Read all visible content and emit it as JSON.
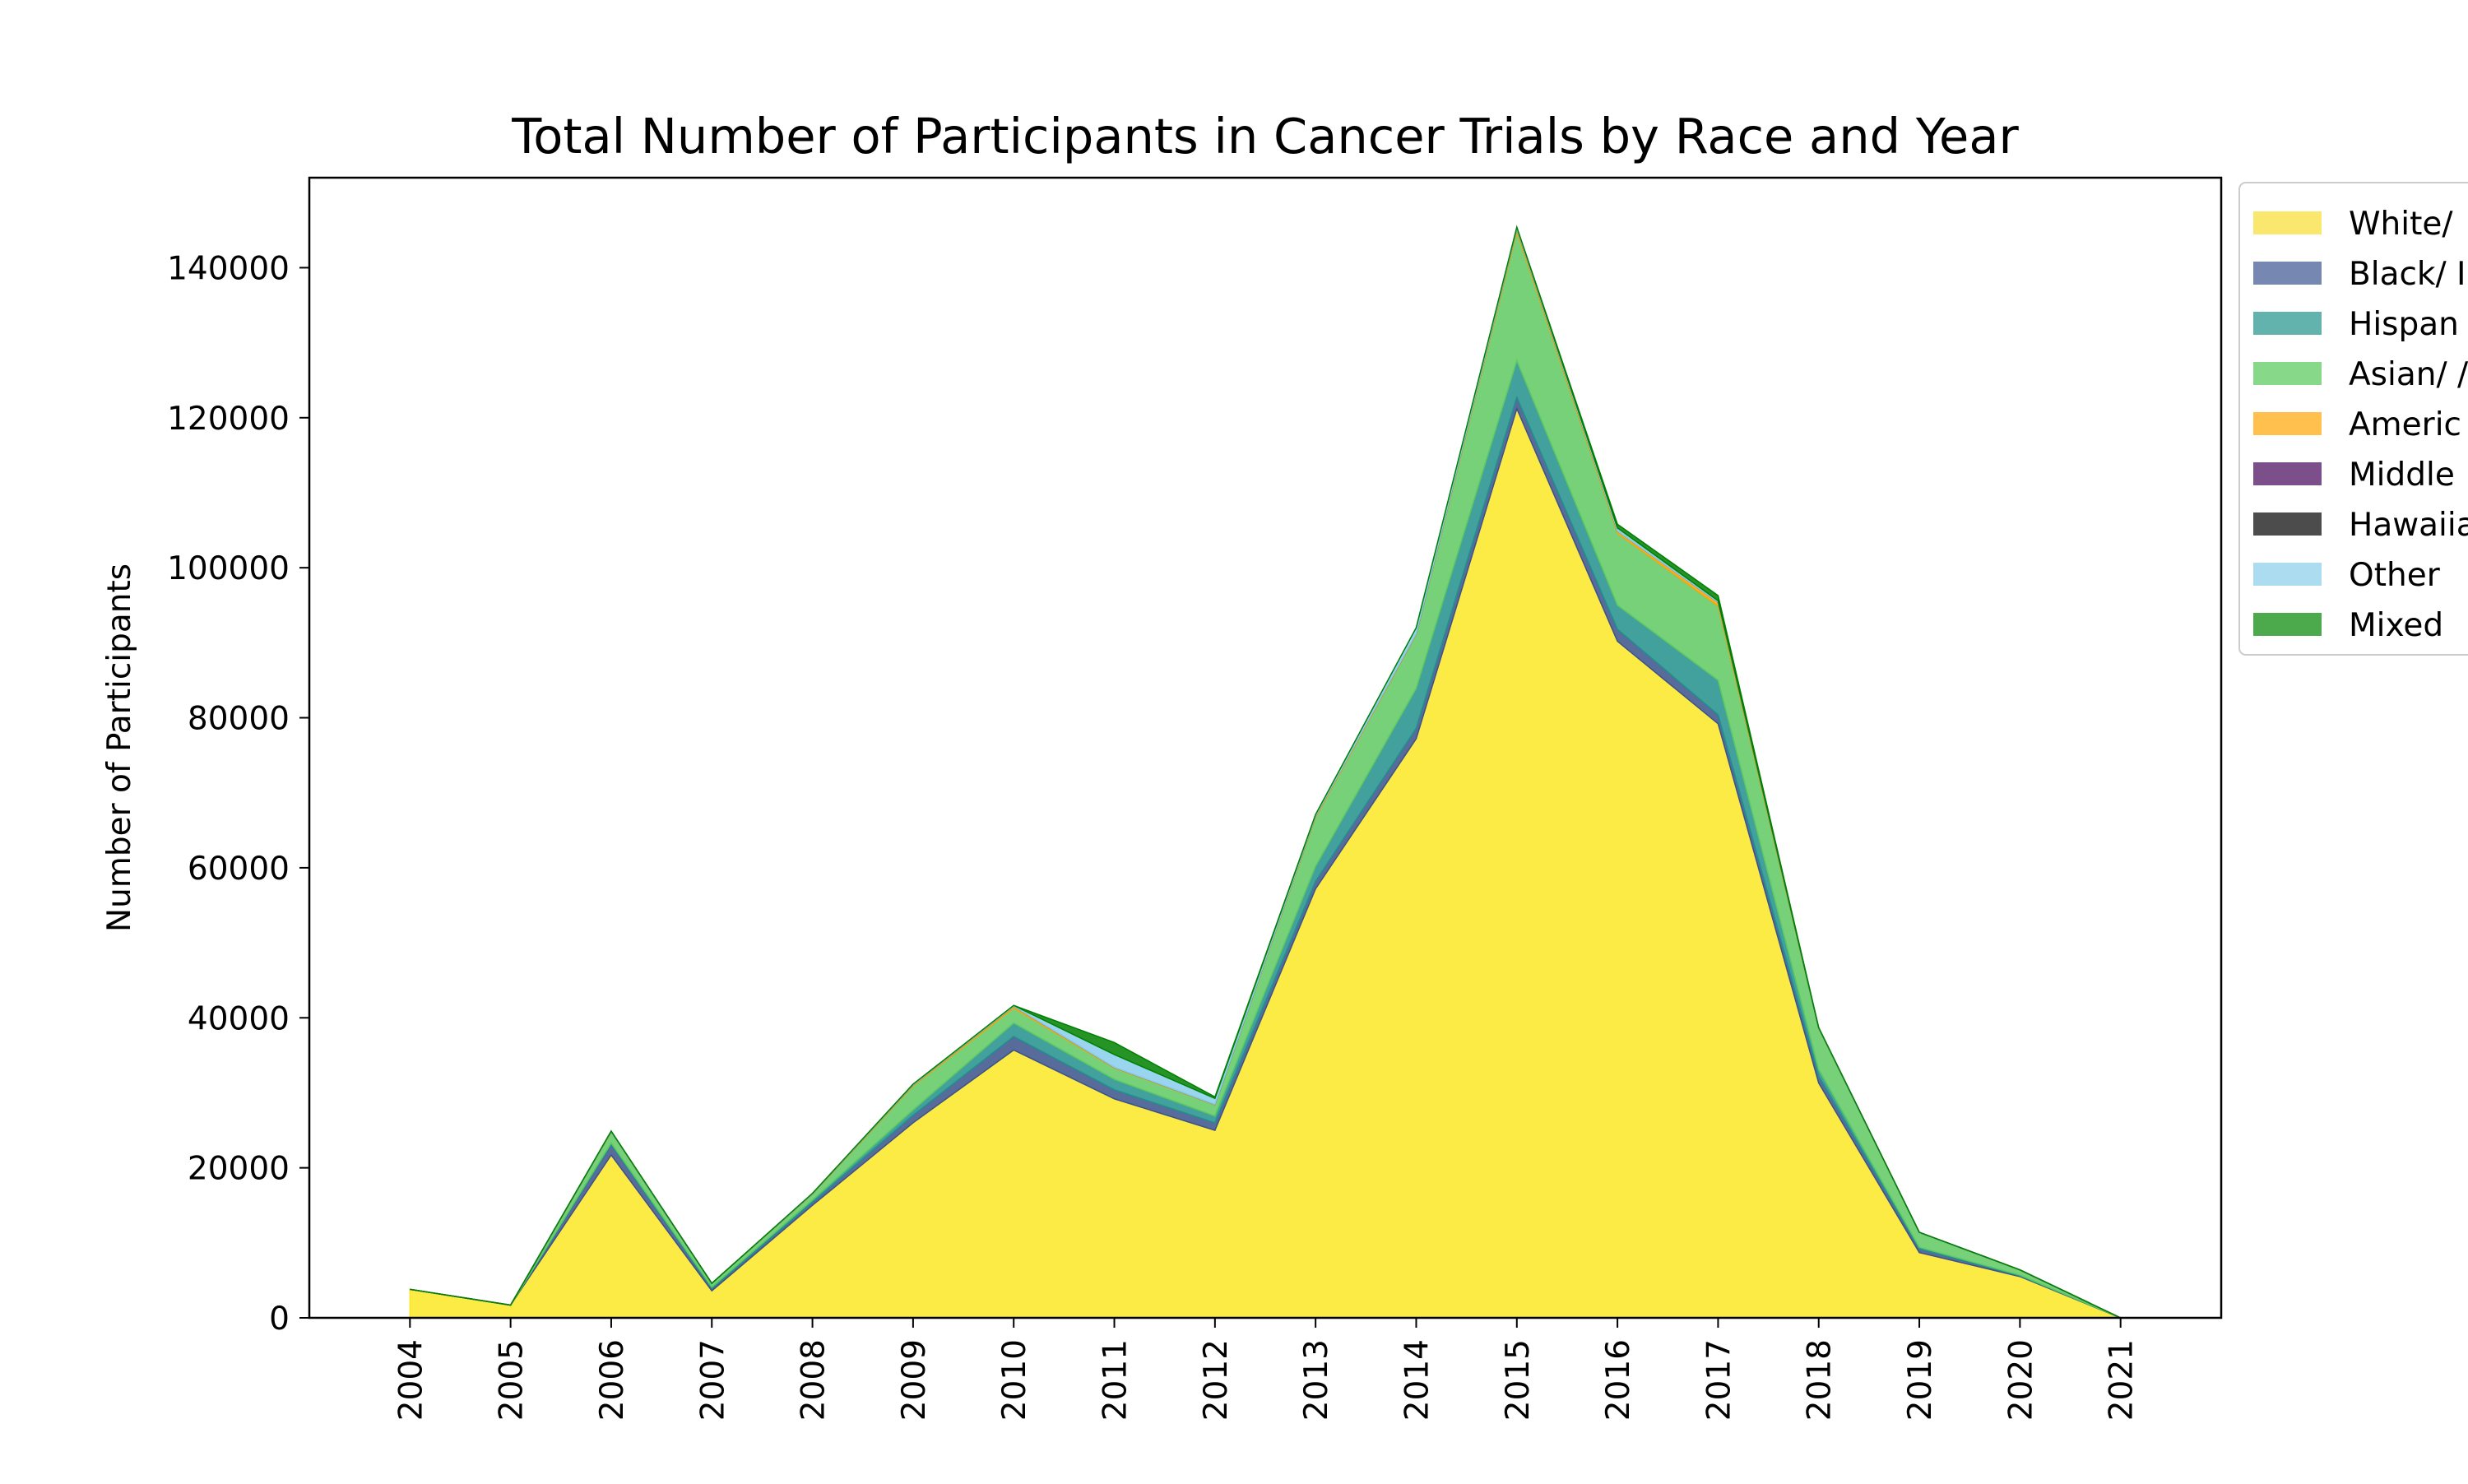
{
  "chart_data": {
    "type": "area",
    "stacked": true,
    "title": "Total Number of Participants in Cancer Trials by Race and Year",
    "xlabel": "",
    "ylabel": "Number of Participants",
    "x": [
      2004,
      2005,
      2006,
      2007,
      2008,
      2009,
      2010,
      2011,
      2012,
      2013,
      2014,
      2015,
      2016,
      2017,
      2018,
      2019,
      2020,
      2021
    ],
    "ylim": [
      0,
      152000
    ],
    "yticks": [
      0,
      20000,
      40000,
      60000,
      80000,
      100000,
      120000,
      140000
    ],
    "grid": false,
    "legend_position": "outside-top-right",
    "series": [
      {
        "name": "White/",
        "color": "#fde725",
        "values": [
          3800,
          1700,
          21700,
          3600,
          15000,
          26000,
          35700,
          29200,
          25000,
          57200,
          77200,
          121200,
          90200,
          79200,
          31300,
          8700,
          5500,
          0
        ]
      },
      {
        "name": "Black/ I",
        "color": "#3b528b",
        "values": [
          0,
          0,
          1400,
          300,
          400,
          1000,
          1800,
          1200,
          1000,
          1000,
          1400,
          1500,
          1600,
          1200,
          900,
          500,
          100,
          0
        ]
      },
      {
        "name": "Hispan",
        "color": "#21918c",
        "values": [
          0,
          0,
          200,
          200,
          300,
          700,
          1800,
          1400,
          900,
          2000,
          5300,
          4900,
          3200,
          4600,
          900,
          200,
          100,
          0
        ]
      },
      {
        "name": "Asian/ /",
        "color": "#5ec962",
        "values": [
          0,
          0,
          1500,
          500,
          800,
          3200,
          2000,
          1500,
          1500,
          6500,
          7200,
          17200,
          9600,
          9900,
          5500,
          2000,
          700,
          0
        ]
      },
      {
        "name": "Americ",
        "color": "#ffa500",
        "values": [
          0,
          0,
          50,
          0,
          50,
          150,
          250,
          100,
          50,
          200,
          100,
          400,
          300,
          500,
          50,
          0,
          0,
          0
        ]
      },
      {
        "name": "Middle",
        "color": "#440154",
        "values": [
          0,
          0,
          0,
          0,
          0,
          0,
          0,
          0,
          0,
          0,
          0,
          0,
          0,
          0,
          0,
          0,
          0,
          0
        ]
      },
      {
        "name": "Hawaiia",
        "color": "#000000",
        "values": [
          0,
          0,
          0,
          0,
          0,
          0,
          0,
          0,
          0,
          0,
          0,
          0,
          0,
          0,
          0,
          0,
          0,
          0
        ]
      },
      {
        "name": "Other",
        "color": "#87ceeb",
        "values": [
          0,
          0,
          50,
          0,
          50,
          100,
          100,
          1700,
          800,
          200,
          800,
          200,
          400,
          200,
          50,
          0,
          0,
          0
        ]
      },
      {
        "name": "Mixed",
        "color": "#008000",
        "values": [
          0,
          0,
          0,
          0,
          0,
          0,
          0,
          1600,
          200,
          0,
          0,
          0,
          500,
          700,
          0,
          0,
          0,
          0
        ]
      }
    ],
    "legend_colors": [
      "#fae76d",
      "#7687b2",
      "#62b2ae",
      "#88d88a",
      "#ffc04e",
      "#7c4e8a",
      "#4c4c4c",
      "#abdcef",
      "#4ca94c"
    ]
  }
}
